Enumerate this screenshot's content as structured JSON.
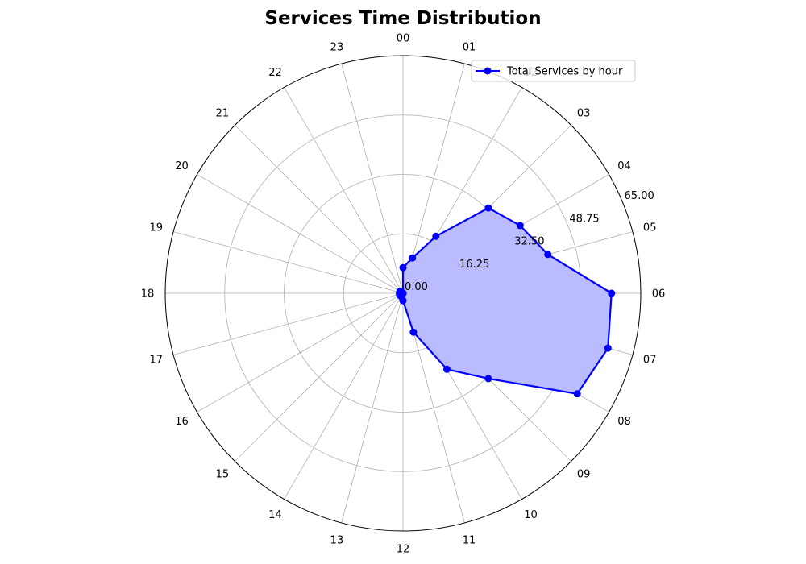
{
  "chart_data": {
    "type": "line",
    "subtype": "polar",
    "title": "Services Time Distribution",
    "theta_labels": [
      "00",
      "01",
      "02",
      "03",
      "04",
      "05",
      "06",
      "07",
      "08",
      "09",
      "10",
      "11",
      "12",
      "13",
      "14",
      "15",
      "16",
      "17",
      "18",
      "19",
      "20",
      "21",
      "22",
      "23"
    ],
    "radial_ticks": [
      0,
      16.25,
      32.5,
      48.75,
      65
    ],
    "radial_tick_labels": [
      "0.00",
      "16.25",
      "32.50",
      "48.75",
      "65.00"
    ],
    "rlim": [
      0,
      65
    ],
    "grid": true,
    "legend": {
      "position": "top-right",
      "entries": [
        "Total Services by hour"
      ]
    },
    "series": [
      {
        "name": "Total Services by hour",
        "color": "#0000ff",
        "fill": "#bbbbff",
        "values": [
          7,
          10,
          18,
          33,
          37,
          41,
          57,
          58,
          55,
          33,
          24,
          11,
          2,
          0,
          1,
          1,
          1,
          1,
          1,
          0,
          1,
          0,
          0,
          0
        ]
      }
    ]
  }
}
